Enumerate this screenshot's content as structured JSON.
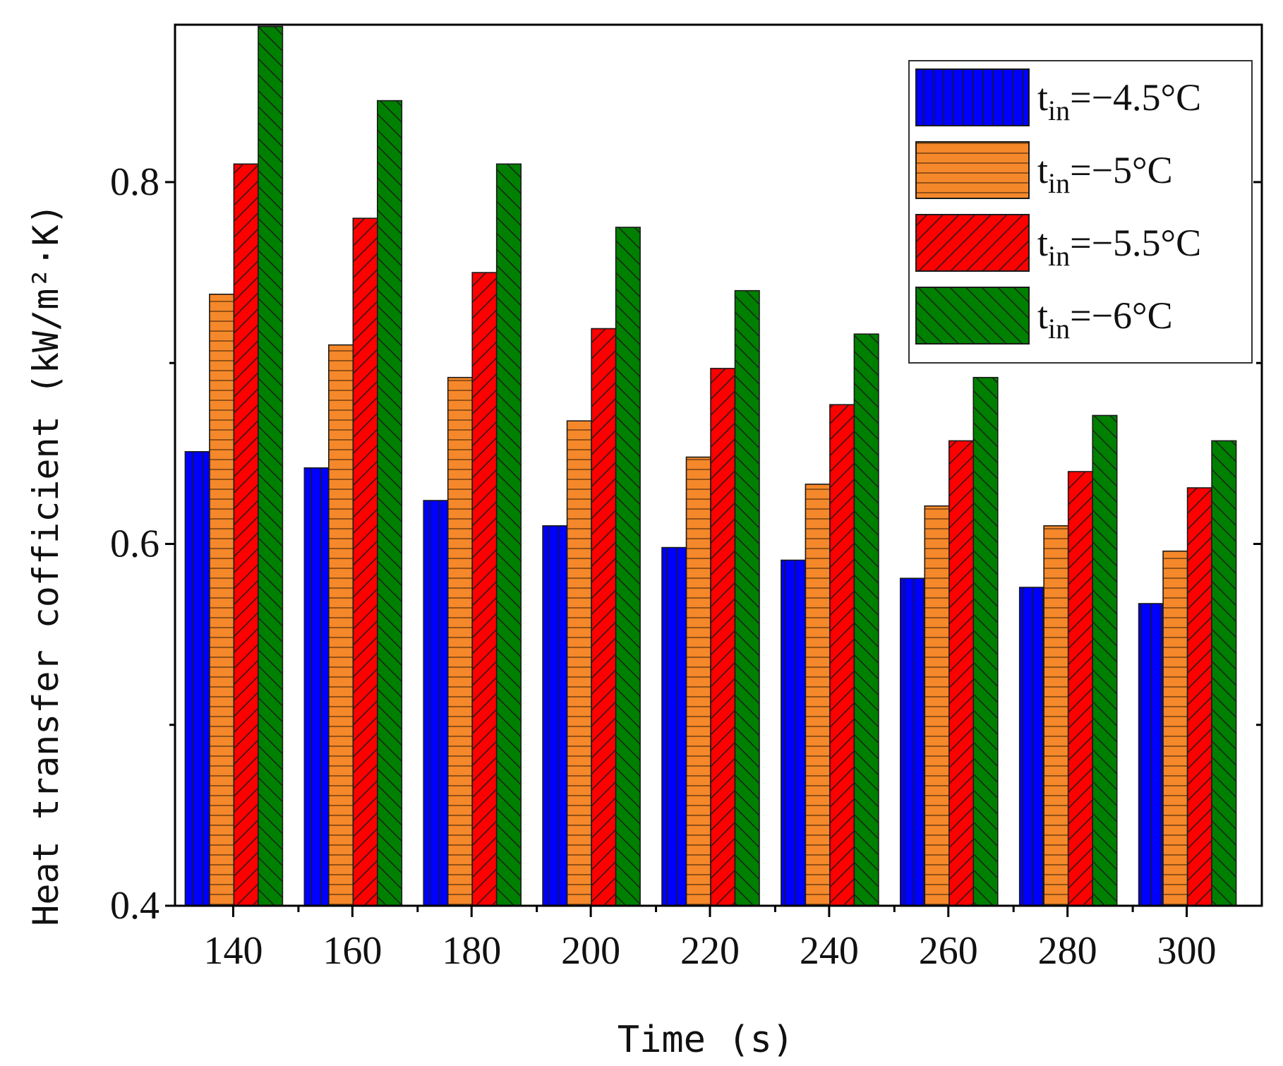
{
  "chart_data": {
    "type": "bar",
    "title": "",
    "xlabel": "Time (s)",
    "ylabel": "Heat transfer cofficient (kW/m²·K)",
    "categories": [
      "140",
      "160",
      "180",
      "200",
      "220",
      "240",
      "260",
      "280",
      "300"
    ],
    "ylim": [
      0.4,
      0.887
    ],
    "yticks": [
      {
        "value": 0.4,
        "label": "0.4"
      },
      {
        "value": 0.6,
        "label": "0.6"
      },
      {
        "value": 0.8,
        "label": "0.8"
      }
    ],
    "yminor_ticks": [
      0.5,
      0.7
    ],
    "grid": false,
    "legend_position": "top-right",
    "series": [
      {
        "name": "t_in=-4.5°C",
        "legend_base": "t",
        "legend_sub": "in",
        "legend_rest": "=−4.5°C",
        "color": "#0000ff",
        "pattern": "vertical",
        "values": [
          0.651,
          0.642,
          0.624,
          0.61,
          0.598,
          0.591,
          0.581,
          0.576,
          0.567
        ]
      },
      {
        "name": "t_in=-5°C",
        "legend_base": "t",
        "legend_sub": "in",
        "legend_rest": "=−5°C",
        "color": "#f5882a",
        "pattern": "horizontal",
        "values": [
          0.738,
          0.71,
          0.692,
          0.668,
          0.648,
          0.633,
          0.621,
          0.61,
          0.596
        ]
      },
      {
        "name": "t_in=-5.5°C",
        "legend_base": "t",
        "legend_sub": "in",
        "legend_rest": "=−5.5°C",
        "color": "#ff0000",
        "pattern": "backslash",
        "values": [
          0.81,
          0.78,
          0.75,
          0.719,
          0.697,
          0.677,
          0.657,
          0.64,
          0.631
        ]
      },
      {
        "name": "t_in=-6°C",
        "legend_base": "t",
        "legend_sub": "in",
        "legend_rest": "=−6°C",
        "color": "#008000",
        "pattern": "slash",
        "values": [
          0.886,
          0.845,
          0.81,
          0.775,
          0.74,
          0.716,
          0.692,
          0.671,
          0.657
        ]
      }
    ]
  }
}
